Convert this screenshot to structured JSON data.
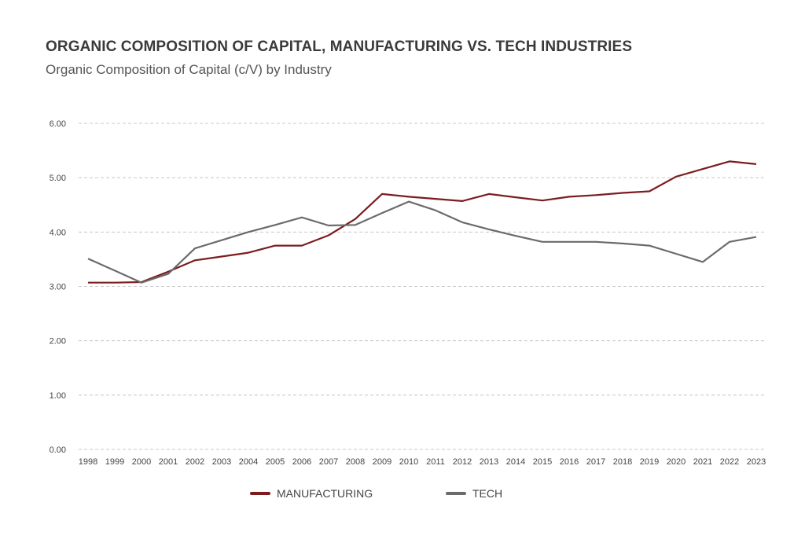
{
  "chart_data": {
    "type": "line",
    "title": "ORGANIC COMPOSITION OF CAPITAL, MANUFACTURING VS. TECH INDUSTRIES",
    "subtitle": "Organic Composition of Capital (c/V) by Industry",
    "xlabel": "",
    "ylabel": "",
    "ylim": [
      0,
      6
    ],
    "y_ticks": [
      "0.00",
      "1.00",
      "2.00",
      "3.00",
      "4.00",
      "5.00",
      "6.00"
    ],
    "y_tick_values": [
      0,
      1,
      2,
      3,
      4,
      5,
      6
    ],
    "grid": true,
    "legend_position": "bottom",
    "x": [
      "1998",
      "1999",
      "2000",
      "2001",
      "2002",
      "2003",
      "2004",
      "2005",
      "2006",
      "2007",
      "2008",
      "2009",
      "2010",
      "2011",
      "2012",
      "2013",
      "2014",
      "2015",
      "2016",
      "2017",
      "2018",
      "2019",
      "2020",
      "2021",
      "2022",
      "2023"
    ],
    "series": [
      {
        "name": "MANUFACTURING",
        "color": "#7b1c20",
        "values": [
          3.07,
          3.07,
          3.08,
          3.27,
          3.48,
          3.55,
          3.62,
          3.75,
          3.75,
          3.94,
          4.24,
          4.7,
          4.65,
          4.61,
          4.57,
          4.7,
          4.64,
          4.58,
          4.65,
          4.68,
          4.72,
          4.75,
          5.02,
          5.16,
          5.3,
          5.25
        ]
      },
      {
        "name": "TECH",
        "color": "#6b6b6b",
        "values": [
          3.51,
          3.29,
          3.07,
          3.23,
          3.7,
          3.85,
          4.0,
          4.13,
          4.27,
          4.12,
          4.13,
          4.35,
          4.56,
          4.4,
          4.18,
          4.05,
          3.93,
          3.82,
          3.82,
          3.82,
          3.79,
          3.75,
          3.6,
          3.45,
          3.82,
          3.91
        ]
      }
    ]
  }
}
